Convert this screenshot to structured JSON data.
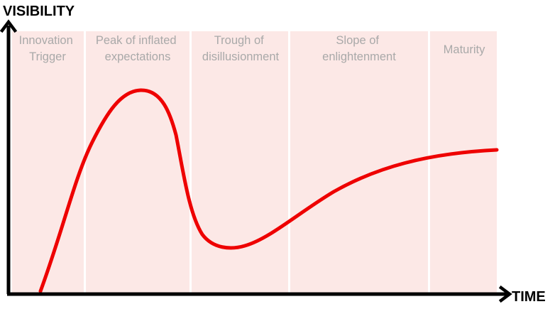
{
  "axes": {
    "y_label": "VISIBILITY",
    "x_label": "TIME"
  },
  "phases": [
    {
      "lines": [
        "Innovation",
        "Trigger"
      ]
    },
    {
      "lines": [
        "Peak of inflated",
        "expectations"
      ]
    },
    {
      "lines": [
        "Trough of",
        "disillusionment"
      ]
    },
    {
      "lines": [
        "Slope of",
        "enlightenment"
      ]
    },
    {
      "lines": [
        "Maturity"
      ]
    }
  ],
  "colors": {
    "curve": "#ee0000",
    "band": "#fce8e6",
    "phase_text": "#a9a9a9",
    "axis": "#000000"
  }
}
